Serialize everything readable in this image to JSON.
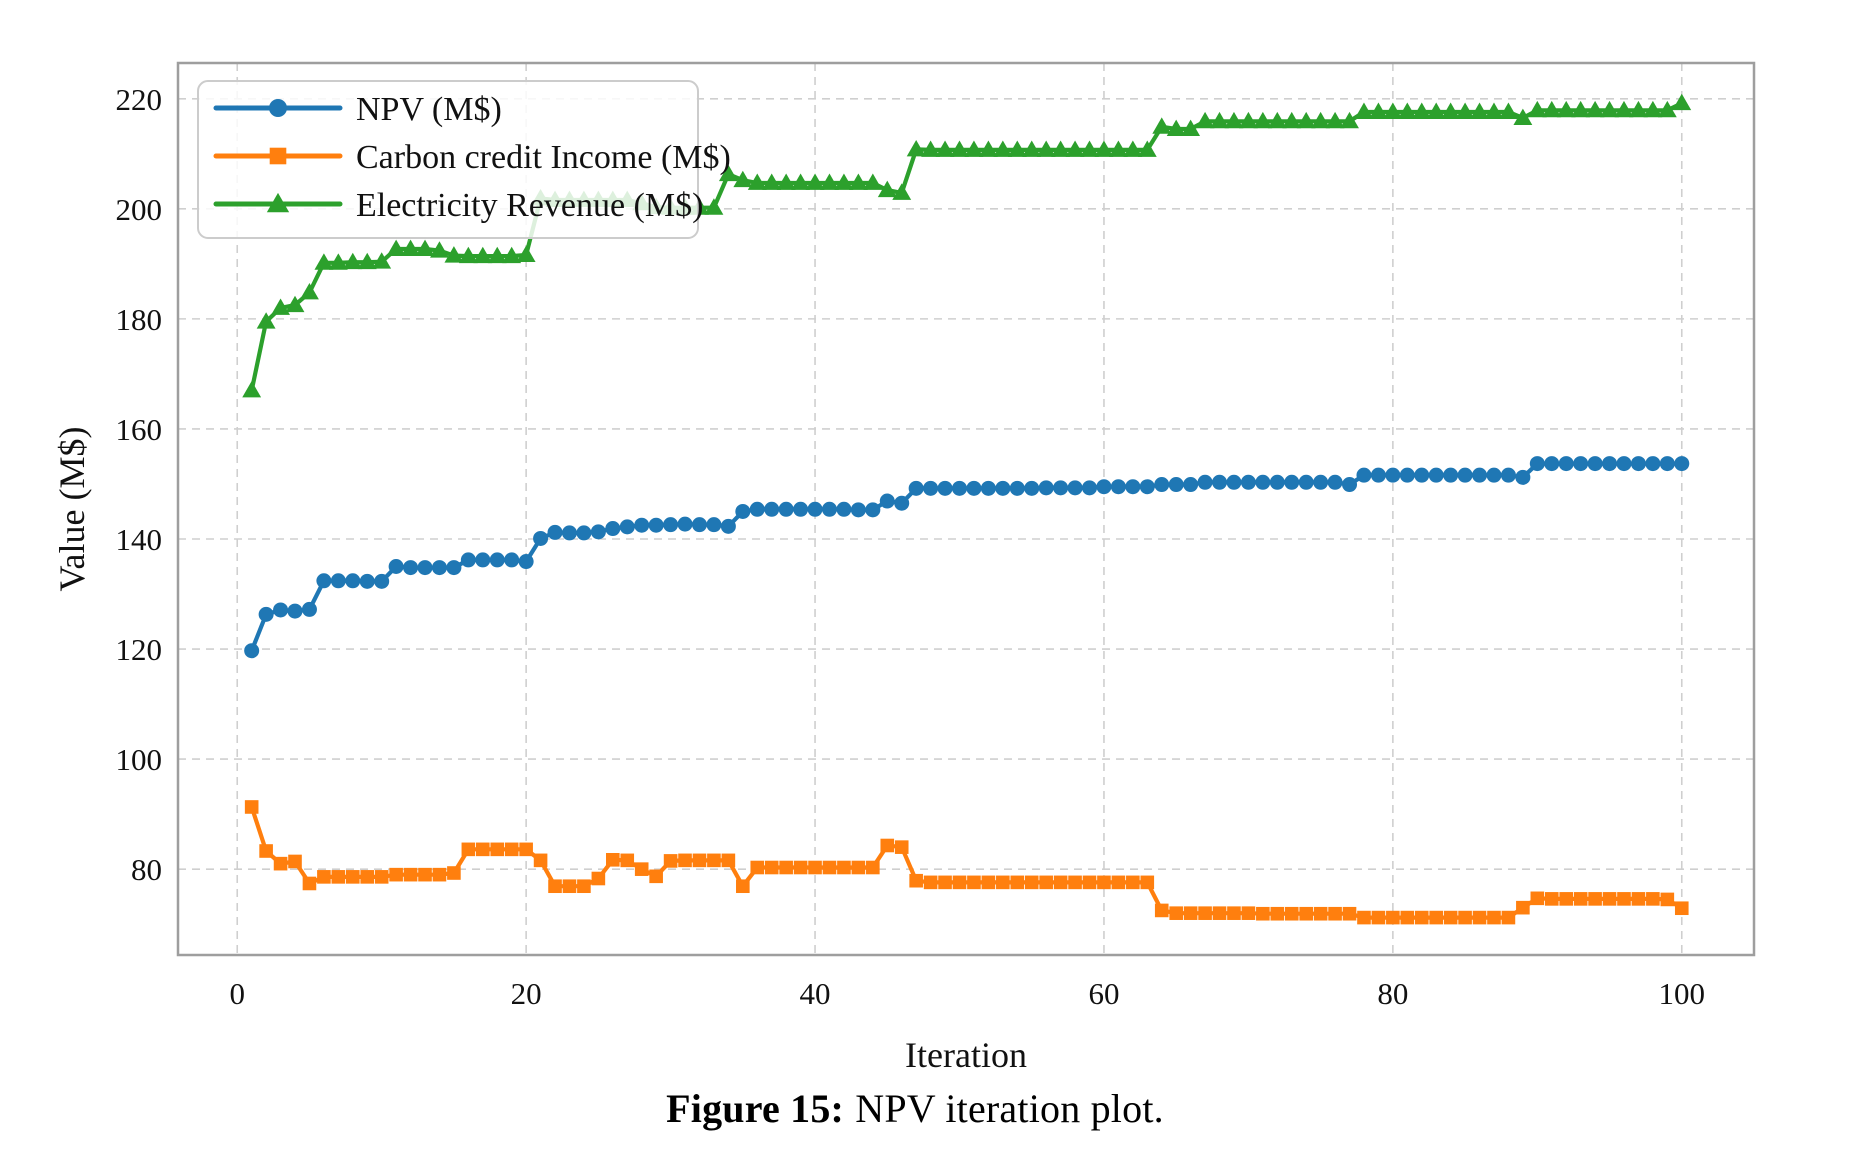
{
  "figure": {
    "caption_prefix": "Figure 15:",
    "caption_text": "NPV iteration plot."
  },
  "chart_data": {
    "type": "line",
    "title": "",
    "xlabel": "Iteration",
    "ylabel": "Value (M$)",
    "xlim": [
      -4.1,
      105.0
    ],
    "ylim": [
      64.4,
      226.5
    ],
    "x_ticks": [
      0,
      20,
      40,
      60,
      80,
      100
    ],
    "y_ticks": [
      80,
      100,
      120,
      140,
      160,
      180,
      200,
      220
    ],
    "grid": true,
    "grid_color": "#cfcfcf",
    "spine_color": "#9e9e9e",
    "legend_position": "upper left",
    "x": [
      1,
      2,
      3,
      4,
      5,
      6,
      7,
      8,
      9,
      10,
      11,
      12,
      13,
      14,
      15,
      16,
      17,
      18,
      19,
      20,
      21,
      22,
      23,
      24,
      25,
      26,
      27,
      28,
      29,
      30,
      31,
      32,
      33,
      34,
      35,
      36,
      37,
      38,
      39,
      40,
      41,
      42,
      43,
      44,
      45,
      46,
      47,
      48,
      49,
      50,
      51,
      52,
      53,
      54,
      55,
      56,
      57,
      58,
      59,
      60,
      61,
      62,
      63,
      64,
      65,
      66,
      67,
      68,
      69,
      70,
      71,
      72,
      73,
      74,
      75,
      76,
      77,
      78,
      79,
      80,
      81,
      82,
      83,
      84,
      85,
      86,
      87,
      88,
      89,
      90,
      91,
      92,
      93,
      94,
      95,
      96,
      97,
      98,
      99,
      100
    ],
    "series": [
      {
        "name": "NPV (M$)",
        "color": "#1f77b4",
        "marker": "circle",
        "values": [
          119.7,
          126.3,
          127.1,
          126.9,
          127.2,
          132.4,
          132.4,
          132.4,
          132.3,
          132.3,
          135.0,
          134.8,
          134.8,
          134.8,
          134.8,
          136.2,
          136.2,
          136.2,
          136.2,
          135.9,
          140.1,
          141.2,
          141.1,
          141.1,
          141.3,
          141.9,
          142.2,
          142.5,
          142.5,
          142.6,
          142.7,
          142.6,
          142.6,
          142.3,
          145.0,
          145.4,
          145.4,
          145.4,
          145.4,
          145.4,
          145.4,
          145.4,
          145.3,
          145.3,
          146.9,
          146.5,
          149.2,
          149.2,
          149.2,
          149.2,
          149.2,
          149.2,
          149.2,
          149.2,
          149.2,
          149.3,
          149.3,
          149.3,
          149.3,
          149.5,
          149.5,
          149.5,
          149.5,
          149.9,
          149.9,
          149.9,
          150.3,
          150.3,
          150.3,
          150.3,
          150.3,
          150.3,
          150.3,
          150.3,
          150.3,
          150.3,
          149.9,
          151.6,
          151.6,
          151.6,
          151.6,
          151.6,
          151.6,
          151.6,
          151.6,
          151.6,
          151.6,
          151.6,
          151.2,
          153.7,
          153.7,
          153.7,
          153.7,
          153.7,
          153.7,
          153.7,
          153.7,
          153.7,
          153.7,
          153.7
        ]
      },
      {
        "name": "Carbon credit Income (M$)",
        "color": "#ff7f0e",
        "marker": "square",
        "values": [
          91.3,
          83.3,
          81.0,
          81.4,
          77.4,
          78.6,
          78.6,
          78.6,
          78.6,
          78.6,
          79.0,
          79.0,
          79.0,
          79.0,
          79.3,
          83.6,
          83.6,
          83.6,
          83.6,
          83.6,
          81.6,
          76.9,
          76.9,
          76.9,
          78.3,
          81.7,
          81.6,
          80.0,
          78.7,
          81.5,
          81.6,
          81.6,
          81.6,
          81.6,
          76.9,
          80.3,
          80.3,
          80.3,
          80.3,
          80.3,
          80.3,
          80.3,
          80.3,
          80.3,
          84.3,
          84.0,
          77.9,
          77.6,
          77.6,
          77.6,
          77.6,
          77.6,
          77.6,
          77.6,
          77.6,
          77.6,
          77.6,
          77.6,
          77.6,
          77.6,
          77.6,
          77.6,
          77.6,
          72.5,
          72.0,
          72.0,
          72.0,
          72.0,
          72.0,
          72.0,
          71.9,
          71.9,
          71.9,
          71.9,
          71.9,
          71.9,
          71.9,
          71.2,
          71.2,
          71.2,
          71.2,
          71.2,
          71.2,
          71.2,
          71.2,
          71.2,
          71.2,
          71.2,
          73.0,
          74.7,
          74.6,
          74.6,
          74.6,
          74.6,
          74.6,
          74.6,
          74.6,
          74.6,
          74.5,
          72.9
        ]
      },
      {
        "name": "Electricity Revenue (M$)",
        "color": "#2ca02c",
        "marker": "triangle",
        "values": [
          167.0,
          179.5,
          182.0,
          182.5,
          184.8,
          190.2,
          190.2,
          190.3,
          190.3,
          190.4,
          192.7,
          192.7,
          192.7,
          192.4,
          191.5,
          191.4,
          191.4,
          191.4,
          191.4,
          191.6,
          201.9,
          201.6,
          201.6,
          201.6,
          201.6,
          201.6,
          201.6,
          201.0,
          200.3,
          200.2,
          200.2,
          200.2,
          200.2,
          206.3,
          205.2,
          204.7,
          204.7,
          204.7,
          204.7,
          204.7,
          204.7,
          204.7,
          204.7,
          204.7,
          203.4,
          202.9,
          210.8,
          210.7,
          210.7,
          210.7,
          210.7,
          210.7,
          210.7,
          210.7,
          210.7,
          210.7,
          210.7,
          210.7,
          210.7,
          210.7,
          210.7,
          210.7,
          210.7,
          214.9,
          214.5,
          214.5,
          215.9,
          215.9,
          215.9,
          215.9,
          215.9,
          215.9,
          215.9,
          215.9,
          215.9,
          215.9,
          215.9,
          217.6,
          217.6,
          217.6,
          217.6,
          217.6,
          217.6,
          217.6,
          217.6,
          217.6,
          217.6,
          217.6,
          216.5,
          217.9,
          217.9,
          217.9,
          217.9,
          217.9,
          217.9,
          217.9,
          217.9,
          217.9,
          217.9,
          219.2
        ]
      }
    ]
  }
}
